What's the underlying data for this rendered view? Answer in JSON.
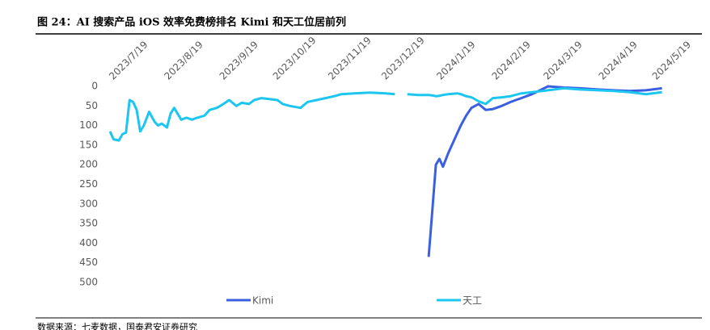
{
  "chart_data": {
    "type": "line",
    "title": "图 24：AI 搜索产品 iOS 效率免费榜排名 Kimi 和天工位居前列",
    "source": "数据来源：七麦数据，国泰君安证券研究",
    "x": [
      "2023/7/17",
      "2023/7/19",
      "2023/7/22",
      "2023/7/24",
      "2023/7/26",
      "2023/7/28",
      "2023/7/30",
      "2023/8/1",
      "2023/8/3",
      "2023/8/5",
      "2023/8/8",
      "2023/8/11",
      "2023/8/13",
      "2023/8/15",
      "2023/8/18",
      "2023/8/20",
      "2023/8/22",
      "2023/8/26",
      "2023/8/29",
      "2023/9/1",
      "2023/9/4",
      "2023/9/8",
      "2023/9/11",
      "2023/9/15",
      "2023/9/17",
      "2023/9/22",
      "2023/9/26",
      "2023/9/29",
      "2023/10/3",
      "2023/10/6",
      "2023/10/10",
      "2023/10/14",
      "2023/10/19",
      "2023/10/22",
      "2023/10/26",
      "2023/11/1",
      "2023/11/5",
      "2023/11/10",
      "2023/11/15",
      "2023/11/20",
      "2023/11/24",
      "2023/12/1",
      "2023/12/10",
      "2023/12/19",
      "2023/12/24",
      "2023/12/29",
      "2023/12/31",
      "2024/1/6",
      "2024/1/12",
      "2024/1/14",
      "2024/1/16",
      "2024/1/18",
      "2024/1/20",
      "2024/1/23",
      "2024/1/28",
      "2024/1/30",
      "2024/2/2",
      "2024/2/5",
      "2024/2/9",
      "2024/2/13",
      "2024/2/17",
      "2024/2/22",
      "2024/2/27",
      "2024/3/4",
      "2024/3/10",
      "2024/3/19",
      "2024/3/28",
      "2024/4/6",
      "2024/4/16",
      "2024/4/25",
      "2024/5/4",
      "2024/5/13",
      "2024/5/22"
    ],
    "series": [
      {
        "name": "Kimi",
        "color": "#3a5fe0",
        "values": [
          null,
          null,
          null,
          null,
          null,
          null,
          null,
          null,
          null,
          null,
          null,
          null,
          null,
          null,
          null,
          null,
          null,
          null,
          null,
          null,
          null,
          null,
          null,
          null,
          null,
          null,
          null,
          null,
          null,
          null,
          null,
          null,
          null,
          null,
          null,
          null,
          null,
          null,
          null,
          null,
          null,
          null,
          null,
          null,
          null,
          null,
          null,
          null,
          435,
          320,
          200,
          185,
          205,
          170,
          120,
          100,
          75,
          55,
          45,
          60,
          58,
          50,
          40,
          30,
          20,
          0,
          3,
          5,
          8,
          10,
          12,
          10,
          5
        ]
      },
      {
        "name": "天工",
        "color": "#1cc6f0",
        "values": [
          115,
          135,
          138,
          122,
          118,
          35,
          40,
          60,
          115,
          100,
          65,
          90,
          100,
          95,
          105,
          70,
          55,
          85,
          80,
          85,
          80,
          75,
          60,
          55,
          50,
          35,
          50,
          42,
          45,
          35,
          30,
          32,
          35,
          45,
          50,
          55,
          40,
          35,
          30,
          25,
          20,
          18,
          16,
          18,
          20,
          null,
          20,
          22,
          22,
          23,
          25,
          24,
          22,
          20,
          18,
          20,
          25,
          28,
          38,
          45,
          30,
          28,
          25,
          18,
          15,
          10,
          5,
          8,
          10,
          12,
          15,
          20,
          15
        ]
      }
    ],
    "xlim": [
      "2023/7/17",
      "2024/5/24"
    ],
    "xticks": [
      "2023/7/19",
      "2023/8/19",
      "2023/9/19",
      "2023/10/19",
      "2023/11/19",
      "2023/12/19",
      "2024/1/19",
      "2024/2/19",
      "2024/3/19",
      "2024/4/19",
      "2024/5/19"
    ],
    "ylim": [
      0,
      500
    ],
    "yticks": [
      0,
      50,
      100,
      150,
      200,
      250,
      300,
      350,
      400,
      450,
      500
    ],
    "y_inverted": true,
    "grid": false
  }
}
